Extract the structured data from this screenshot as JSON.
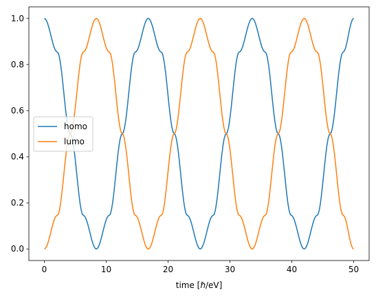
{
  "chart_data": {
    "type": "line",
    "title": "",
    "xlabel": "time [ℏ/eV]",
    "ylabel": "",
    "xlim": [
      -2.5,
      52.5
    ],
    "ylim": [
      -0.05,
      1.05
    ],
    "xticks": [
      0,
      10,
      20,
      30,
      40,
      50
    ],
    "xtick_labels": [
      "0",
      "10",
      "20",
      "30",
      "40",
      "50"
    ],
    "yticks": [
      0.0,
      0.2,
      0.4,
      0.6,
      0.8,
      1.0
    ],
    "ytick_labels": [
      "0.0",
      "0.2",
      "0.4",
      "0.6",
      "0.8",
      "1.0"
    ],
    "grid": false,
    "legend": {
      "placement": "center-left",
      "entries": [
        "homo",
        "lumo"
      ]
    },
    "x": [
      0,
      2.1,
      4.2,
      6.3,
      8.4,
      10.5,
      12.6,
      14.7,
      16.8,
      18.9,
      21.0,
      23.1,
      25.2,
      27.3,
      29.4,
      31.5,
      33.6,
      35.7,
      37.8,
      39.9,
      42.0,
      44.1,
      46.2,
      48.3,
      50.0
    ],
    "series": [
      {
        "name": "homo",
        "color": "#1f77b4",
        "values": [
          1.0,
          0.854,
          0.5,
          0.146,
          0.0,
          0.146,
          0.5,
          0.854,
          1.0,
          0.854,
          0.5,
          0.146,
          0.0,
          0.146,
          0.5,
          0.854,
          1.0,
          0.854,
          0.5,
          0.146,
          0.0,
          0.146,
          0.5,
          0.854,
          1.0
        ]
      },
      {
        "name": "lumo",
        "color": "#ff7f0e",
        "values": [
          0.0,
          0.146,
          0.5,
          0.854,
          1.0,
          0.854,
          0.5,
          0.146,
          0.0,
          0.146,
          0.5,
          0.854,
          1.0,
          0.854,
          0.5,
          0.146,
          0.0,
          0.146,
          0.5,
          0.854,
          1.0,
          0.854,
          0.5,
          0.146,
          0.0
        ]
      }
    ]
  }
}
